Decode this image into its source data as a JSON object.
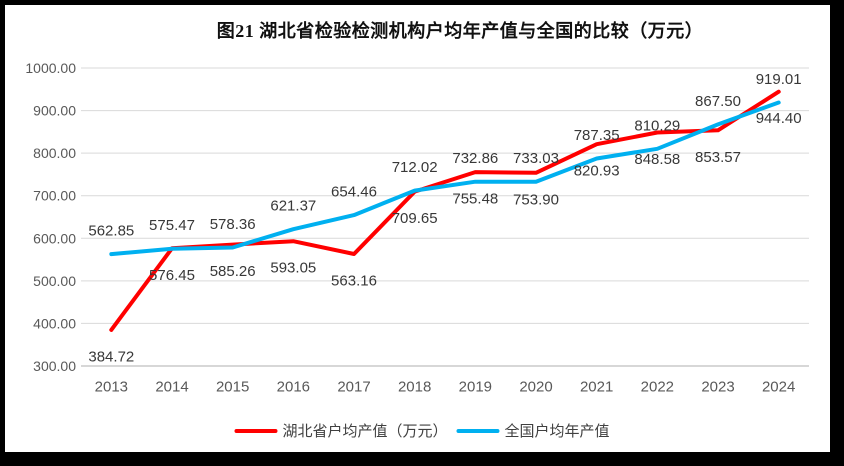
{
  "chart_data": {
    "type": "line",
    "title": "图21  湖北省检验检测机构户均年产值与全国的比较（万元）",
    "categories": [
      "2013",
      "2014",
      "2015",
      "2016",
      "2017",
      "2018",
      "2019",
      "2020",
      "2021",
      "2022",
      "2023",
      "2024"
    ],
    "series": [
      {
        "name": "湖北省户均产值（万元）",
        "color": "#FF0000",
        "label_position": "below",
        "values": [
          384.72,
          576.45,
          585.26,
          593.05,
          563.16,
          709.65,
          755.48,
          753.9,
          820.93,
          848.58,
          853.57,
          944.4
        ]
      },
      {
        "name": "全国户均年产值",
        "color": "#00B0F0",
        "label_position": "above",
        "values": [
          562.85,
          575.47,
          578.36,
          621.37,
          654.46,
          712.02,
          732.86,
          733.03,
          787.35,
          810.29,
          867.5,
          919.01
        ]
      }
    ],
    "ylim": [
      300,
      1000
    ],
    "ytick_step": 100,
    "ytick_labels": [
      "300.00",
      "400.00",
      "500.00",
      "600.00",
      "700.00",
      "800.00",
      "900.00",
      "1000.00"
    ],
    "grid": "horizontal",
    "legend_position": "bottom",
    "line_width": 4,
    "grid_color": "#D9D9D9",
    "axis_color": "#BFBFBF",
    "tick_label_color": "#595959",
    "data_label_color": "#383838",
    "frame_color": "#000000",
    "background_color": "#FFFFFF"
  }
}
